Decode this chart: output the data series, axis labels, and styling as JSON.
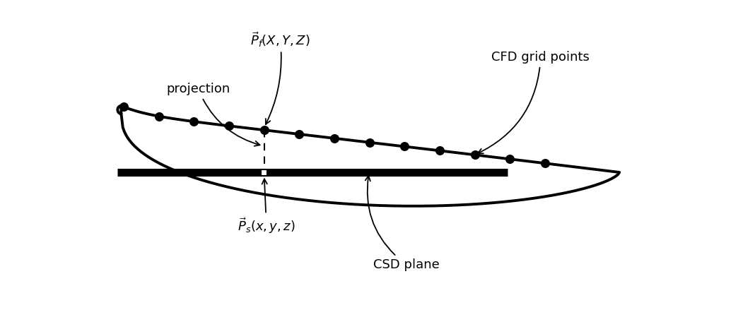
{
  "background_color": "#ffffff",
  "figsize": [
    10.44,
    4.73
  ],
  "dpi": 100,
  "airfoil_color": "#000000",
  "airfoil_linewidth": 2.8,
  "csd_plane_color": "#000000",
  "csd_plane_linewidth": 8,
  "cfd_points_color": "#000000",
  "cfd_point_size": 70,
  "dashed_line_color": "#000000",
  "label_Pf": "$\\vec{P}_f(X,Y,Z)$",
  "label_Ps": "$\\vec{P}_s(x,y,z)$",
  "label_projection": "projection",
  "label_CFD": "CFD grid points",
  "label_CSD": "CSD plane",
  "annotation_fontsize": 13,
  "xlim": [
    0,
    11
  ],
  "ylim": [
    -3.0,
    3.2
  ]
}
